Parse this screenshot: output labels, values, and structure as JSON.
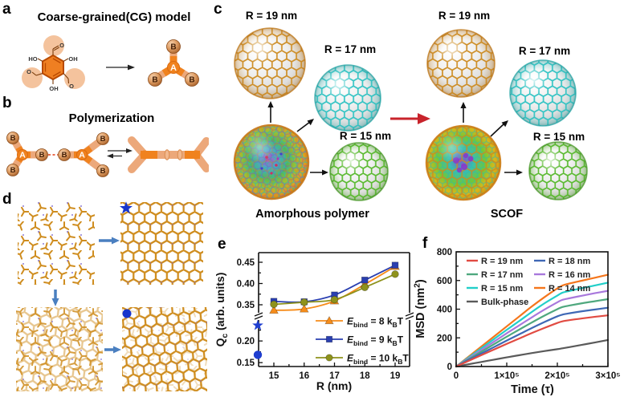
{
  "panel_letters": {
    "a": "a",
    "b": "b",
    "c": "c",
    "d": "d",
    "e": "e",
    "f": "f"
  },
  "panel_a": {
    "title": "Coarse-grained(CG) model",
    "molecule": {
      "ho": "HO",
      "oh_right": "OH",
      "oh_bottom": "OH",
      "o_top": "O",
      "o_left": "O",
      "o_right": "O"
    },
    "bead_a": "A",
    "bead_b": "B"
  },
  "panel_b": {
    "title": "Polymerization",
    "bead_a": "A",
    "bead_b": "B"
  },
  "panel_c": {
    "r19": "R = 19 nm",
    "r17": "R = 17 nm",
    "r15": "R = 15 nm",
    "left_caption": "Amorphous polymer",
    "right_caption": "SCOF"
  },
  "chart_data": [
    {
      "id": "e",
      "type": "line",
      "xlabel": "R (nm)",
      "ylabel_parts": [
        [
          "Q",
          ""
        ],
        [
          "c",
          "sub"
        ],
        [
          " (arb. units)",
          ""
        ]
      ],
      "x": [
        15,
        16,
        17,
        18,
        19
      ],
      "xtick_labels": [
        "15",
        "16",
        "17",
        "18",
        "19"
      ],
      "xticks_minor": [
        15.5,
        16.5,
        17.5,
        18.5
      ],
      "ytick_lower": [
        {
          "v": 0.15,
          "label": "0.15"
        },
        {
          "v": 0.2,
          "label": "0.20"
        }
      ],
      "ytick_upper": [
        {
          "v": 0.35,
          "label": "0.35"
        },
        {
          "v": 0.4,
          "label": "0.40"
        },
        {
          "v": 0.45,
          "label": "0.45"
        }
      ],
      "yticks_minor_lower": [
        0.175,
        0.225
      ],
      "yticks_minor_upper": [
        0.375,
        0.425
      ],
      "axis_break": "y-axis broken between 0.25 and 0.33",
      "series": [
        {
          "plain_name": "Ebind = 8 kBT",
          "name_parts": [
            [
              "E",
              "i"
            ],
            [
              "bind",
              "sub"
            ],
            [
              " = 8 k",
              ""
            ],
            [
              "B",
              "sub"
            ],
            [
              "T",
              ""
            ]
          ],
          "marker": "triangle",
          "color": "#f68c1a",
          "values": [
            0.337,
            0.34,
            0.359,
            0.398,
            0.44
          ]
        },
        {
          "plain_name": "Ebind = 9 kBT",
          "name_parts": [
            [
              "E",
              "i"
            ],
            [
              "bind",
              "sub"
            ],
            [
              " = 9 k",
              ""
            ],
            [
              "B",
              "sub"
            ],
            [
              "T",
              ""
            ]
          ],
          "marker": "square",
          "color": "#2a3fb0",
          "values": [
            0.358,
            0.357,
            0.373,
            0.408,
            0.443
          ]
        },
        {
          "plain_name": "Ebind = 10 kBT",
          "name_parts": [
            [
              "E",
              "i"
            ],
            [
              "bind",
              "sub"
            ],
            [
              " = 10 k",
              ""
            ],
            [
              "B",
              "sub"
            ],
            [
              "T",
              ""
            ]
          ],
          "marker": "circle",
          "color": "#8e921c",
          "values": [
            0.351,
            0.356,
            0.362,
            0.391,
            0.422
          ]
        }
      ],
      "reference_markers": [
        {
          "shape": "star",
          "color": "#1f3ed0",
          "value": 0.236
        },
        {
          "shape": "circle",
          "color": "#1f3ed0",
          "value": 0.168
        }
      ]
    },
    {
      "id": "f",
      "type": "line",
      "xlabel": "Time (τ)",
      "ylabel_parts": [
        [
          "MSD (nm",
          ""
        ],
        [
          "2",
          "sup"
        ],
        [
          ")",
          ""
        ]
      ],
      "xlim": [
        0,
        3
      ],
      "ylim": [
        0,
        800
      ],
      "x_unit_label": "×10⁵",
      "x": [
        0,
        0.25,
        0.5,
        0.75,
        1,
        1.25,
        1.5,
        1.75,
        2,
        2.1,
        2.25,
        2.5,
        2.75,
        3
      ],
      "xticks": [
        {
          "v": 0,
          "label": "0"
        },
        {
          "v": 1,
          "label": "1×10⁵"
        },
        {
          "v": 2,
          "label": "2×10⁵"
        },
        {
          "v": 3,
          "label": "3×10⁵"
        }
      ],
      "xticks_minor": [
        0.5,
        1.5,
        2.5
      ],
      "yticks": [
        {
          "v": 0,
          "label": "0"
        },
        {
          "v": 200,
          "label": "200"
        },
        {
          "v": 400,
          "label": "400"
        },
        {
          "v": 600,
          "label": "600"
        },
        {
          "v": 800,
          "label": "800"
        }
      ],
      "yticks_minor": [
        100,
        300,
        500,
        700
      ],
      "series": [
        {
          "name": "R = 19 nm",
          "color": "#e14b42",
          "values": [
            0,
            40,
            80,
            119,
            158,
            196,
            234,
            270,
            304,
            315,
            324,
            336,
            347,
            357
          ]
        },
        {
          "name": "R = 18 nm",
          "color": "#3f68b5",
          "values": [
            0,
            46,
            91,
            136,
            181,
            225,
            269,
            311,
            350,
            362,
            372,
            386,
            398,
            410
          ]
        },
        {
          "name": "R = 17 nm",
          "color": "#4fa87e",
          "values": [
            0,
            52,
            104,
            156,
            208,
            258,
            308,
            356,
            400,
            415,
            426,
            442,
            456,
            470
          ]
        },
        {
          "name": "R = 16 nm",
          "color": "#a878dc",
          "values": [
            0,
            58,
            116,
            174,
            232,
            288,
            344,
            398,
            448,
            465,
            477,
            495,
            512,
            528
          ]
        },
        {
          "name": "R = 15 nm",
          "color": "#22cfc9",
          "values": [
            0,
            64,
            128,
            192,
            256,
            318,
            382,
            442,
            495,
            515,
            528,
            548,
            566,
            585
          ]
        },
        {
          "name": "R = 14 nm",
          "color": "#f5761c",
          "values": [
            0,
            70,
            140,
            210,
            280,
            350,
            420,
            485,
            545,
            565,
            580,
            600,
            620,
            640
          ]
        },
        {
          "name": "Bulk-phase",
          "color": "#5a5a5a",
          "values": [
            0,
            16,
            32,
            48,
            64,
            79,
            94,
            108,
            121,
            127,
            136,
            152,
            168,
            185
          ]
        }
      ],
      "legend_order": [
        [
          "R = 19 nm",
          "R = 18 nm"
        ],
        [
          "R = 17 nm",
          "R = 16 nm"
        ],
        [
          "R = 15 nm",
          "R = 14 nm"
        ],
        [
          "Bulk-phase"
        ]
      ]
    }
  ]
}
